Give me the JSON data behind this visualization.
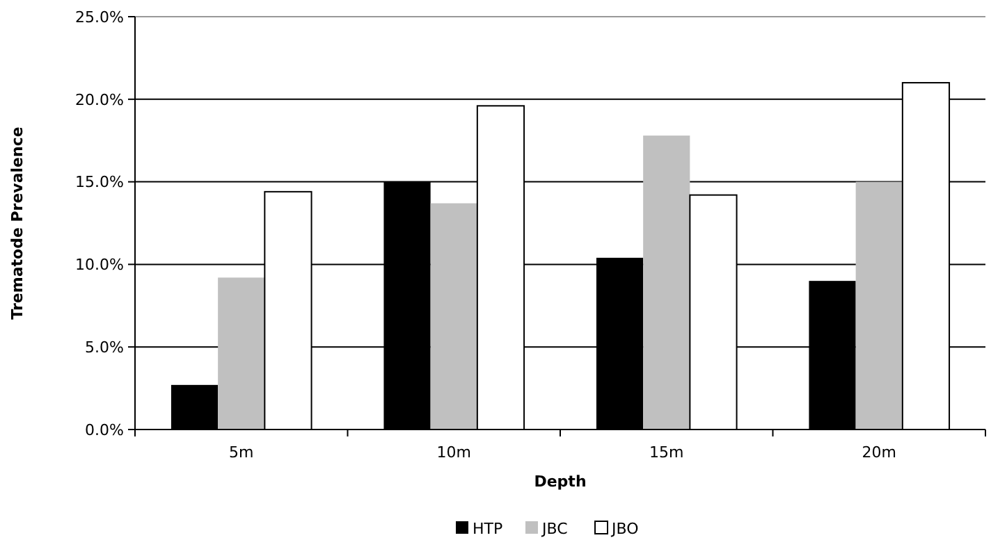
{
  "chart_data": {
    "type": "bar",
    "xlabel": "Depth",
    "ylabel": "Trematode Prevalence",
    "categories": [
      "5m",
      "10m",
      "15m",
      "20m"
    ],
    "series": [
      {
        "name": "HTP",
        "color": "#000000",
        "values": [
          2.7,
          15.0,
          10.4,
          9.0
        ]
      },
      {
        "name": "JBC",
        "color": "#c0c0c0",
        "values": [
          9.2,
          13.7,
          17.8,
          15.0
        ]
      },
      {
        "name": "JBO",
        "color": "#ffffff",
        "values": [
          14.4,
          19.6,
          14.2,
          21.0
        ]
      }
    ],
    "ylim": [
      0,
      25
    ],
    "yticks": [
      {
        "value": 0,
        "label": "0.0%"
      },
      {
        "value": 5,
        "label": "5.0%"
      },
      {
        "value": 10,
        "label": "10.0%"
      },
      {
        "value": 15,
        "label": "15.0%"
      },
      {
        "value": 20,
        "label": "20.0%"
      },
      {
        "value": 25,
        "label": "25.0%"
      }
    ],
    "grid": "y",
    "legend": "bottom"
  }
}
